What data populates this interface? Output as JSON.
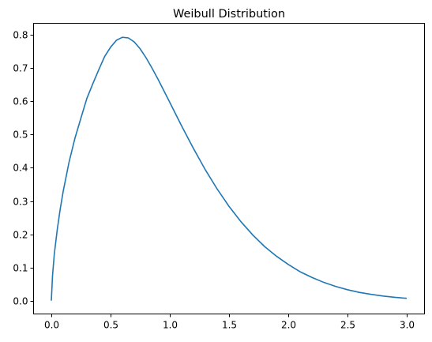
{
  "chart_data": {
    "type": "line",
    "title": "Weibull Distribution",
    "xlabel": "",
    "ylabel": "",
    "xlim": [
      -0.15,
      3.15
    ],
    "ylim": [
      -0.04,
      0.835
    ],
    "xticks": [
      0.0,
      0.5,
      1.0,
      1.5,
      2.0,
      2.5,
      3.0
    ],
    "xtick_labels": [
      "0.0",
      "0.5",
      "1.0",
      "1.5",
      "2.0",
      "2.5",
      "3.0"
    ],
    "yticks": [
      0.0,
      0.1,
      0.2,
      0.3,
      0.4,
      0.5,
      0.6,
      0.7,
      0.8
    ],
    "ytick_labels": [
      "0.0",
      "0.1",
      "0.2",
      "0.3",
      "0.4",
      "0.5",
      "0.6",
      "0.7",
      "0.8"
    ],
    "grid": false,
    "series": [
      {
        "color": "#1f77b4",
        "x": [
          0.0,
          0.01,
          0.025,
          0.05,
          0.075,
          0.1,
          0.15,
          0.2,
          0.25,
          0.3,
          0.35,
          0.4,
          0.45,
          0.5,
          0.55,
          0.6,
          0.65,
          0.7,
          0.75,
          0.8,
          0.85,
          0.9,
          0.95,
          1.0,
          1.1,
          1.2,
          1.3,
          1.4,
          1.5,
          1.6,
          1.7,
          1.8,
          1.9,
          2.0,
          2.1,
          2.2,
          2.3,
          2.4,
          2.5,
          2.6,
          2.7,
          2.8,
          2.9,
          3.0
        ],
        "y": [
          0.0,
          0.075,
          0.14,
          0.214,
          0.276,
          0.329,
          0.418,
          0.49,
          0.55,
          0.609,
          0.653,
          0.695,
          0.735,
          0.763,
          0.784,
          0.793,
          0.791,
          0.779,
          0.758,
          0.731,
          0.7,
          0.667,
          0.632,
          0.597,
          0.526,
          0.458,
          0.394,
          0.336,
          0.284,
          0.238,
          0.198,
          0.163,
          0.134,
          0.109,
          0.087,
          0.07,
          0.055,
          0.043,
          0.033,
          0.025,
          0.019,
          0.014,
          0.01,
          0.007
        ]
      }
    ]
  }
}
